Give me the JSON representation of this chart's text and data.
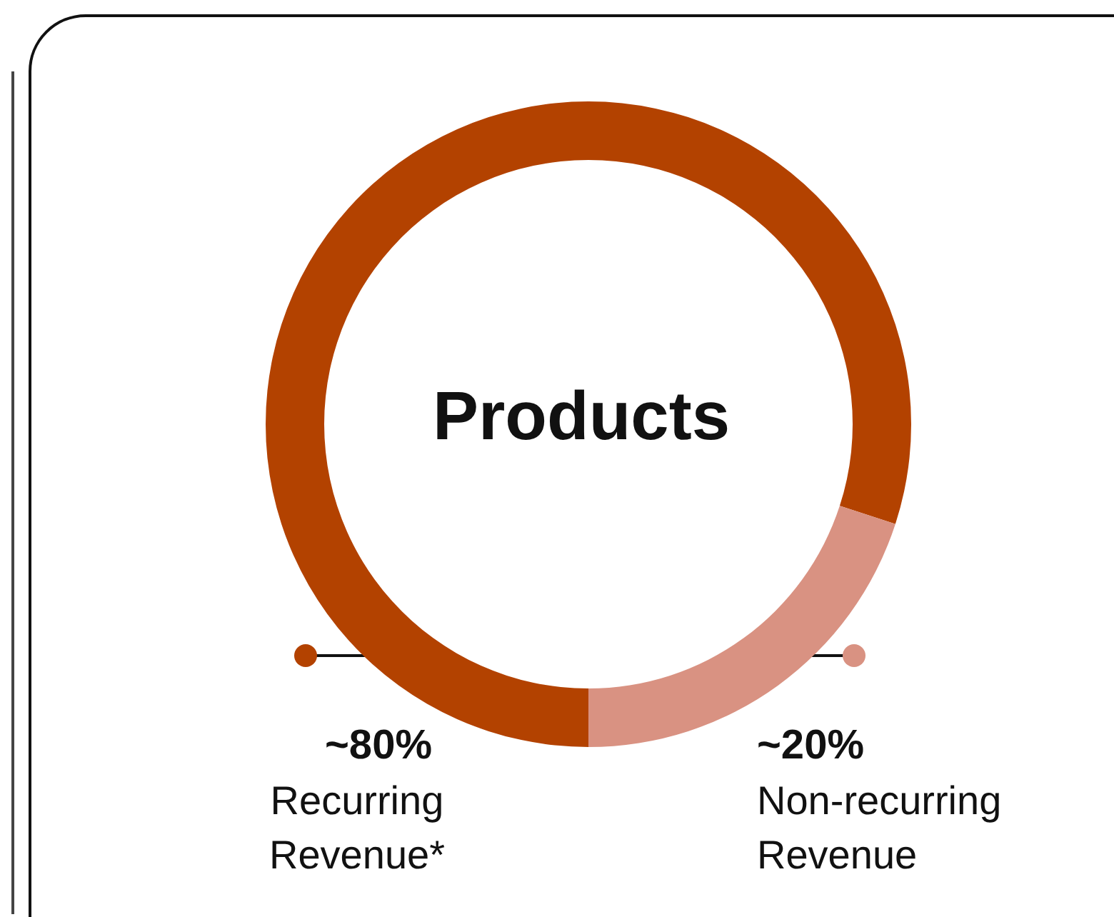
{
  "chart_data": {
    "type": "donut",
    "title": "Products",
    "categories": [
      "Recurring Revenue*",
      "Non-recurring Revenue"
    ],
    "values": [
      80,
      20
    ],
    "value_labels": [
      "~80%",
      "~20%"
    ],
    "colors": [
      "#b34200",
      "#d99282"
    ]
  }
}
